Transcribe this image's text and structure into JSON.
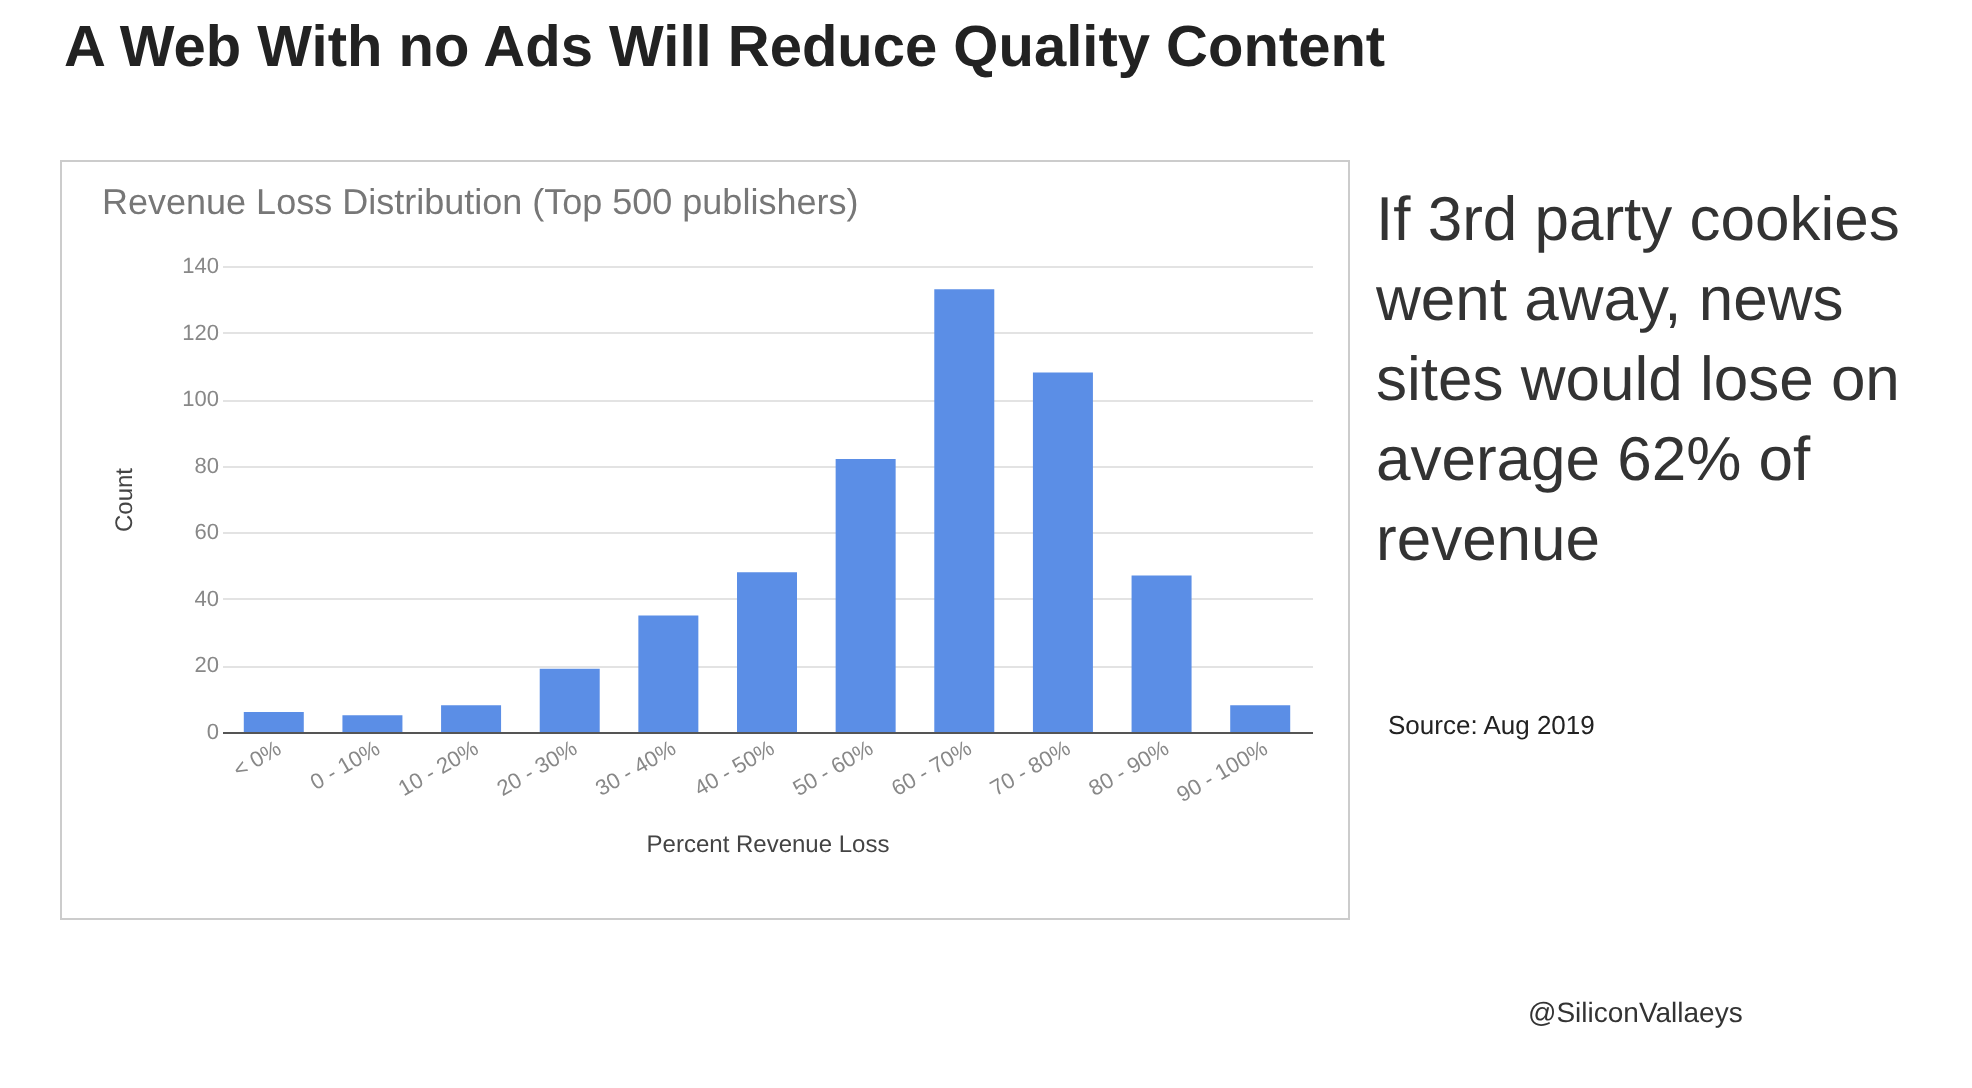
{
  "chart_data": {
    "type": "bar",
    "title": "A Web With no Ads Will Reduce Quality Content",
    "subtitle": "Revenue Loss Distribution (Top 500 publishers)",
    "xlabel": "Percent Revenue Loss",
    "ylabel": "Count",
    "categories": [
      "< 0%",
      "0 - 10%",
      "10 - 20%",
      "20 - 30%",
      "30 - 40%",
      "40 - 50%",
      "50 - 60%",
      "60 - 70%",
      "70 - 80%",
      "80 - 90%",
      "90 - 100%"
    ],
    "values": [
      6,
      5,
      8,
      19,
      35,
      48,
      82,
      133,
      108,
      47,
      8
    ],
    "color": "#5b8ee6",
    "ylim": [
      0,
      140
    ],
    "yticks": [
      0,
      20,
      40,
      60,
      80,
      100,
      120,
      140
    ],
    "grid": "y",
    "annotations": [
      "If 3rd party cookies went away, news sites would lose on average 62% of revenue",
      "Source: Aug 2019",
      "@SiliconVallaeys"
    ]
  }
}
